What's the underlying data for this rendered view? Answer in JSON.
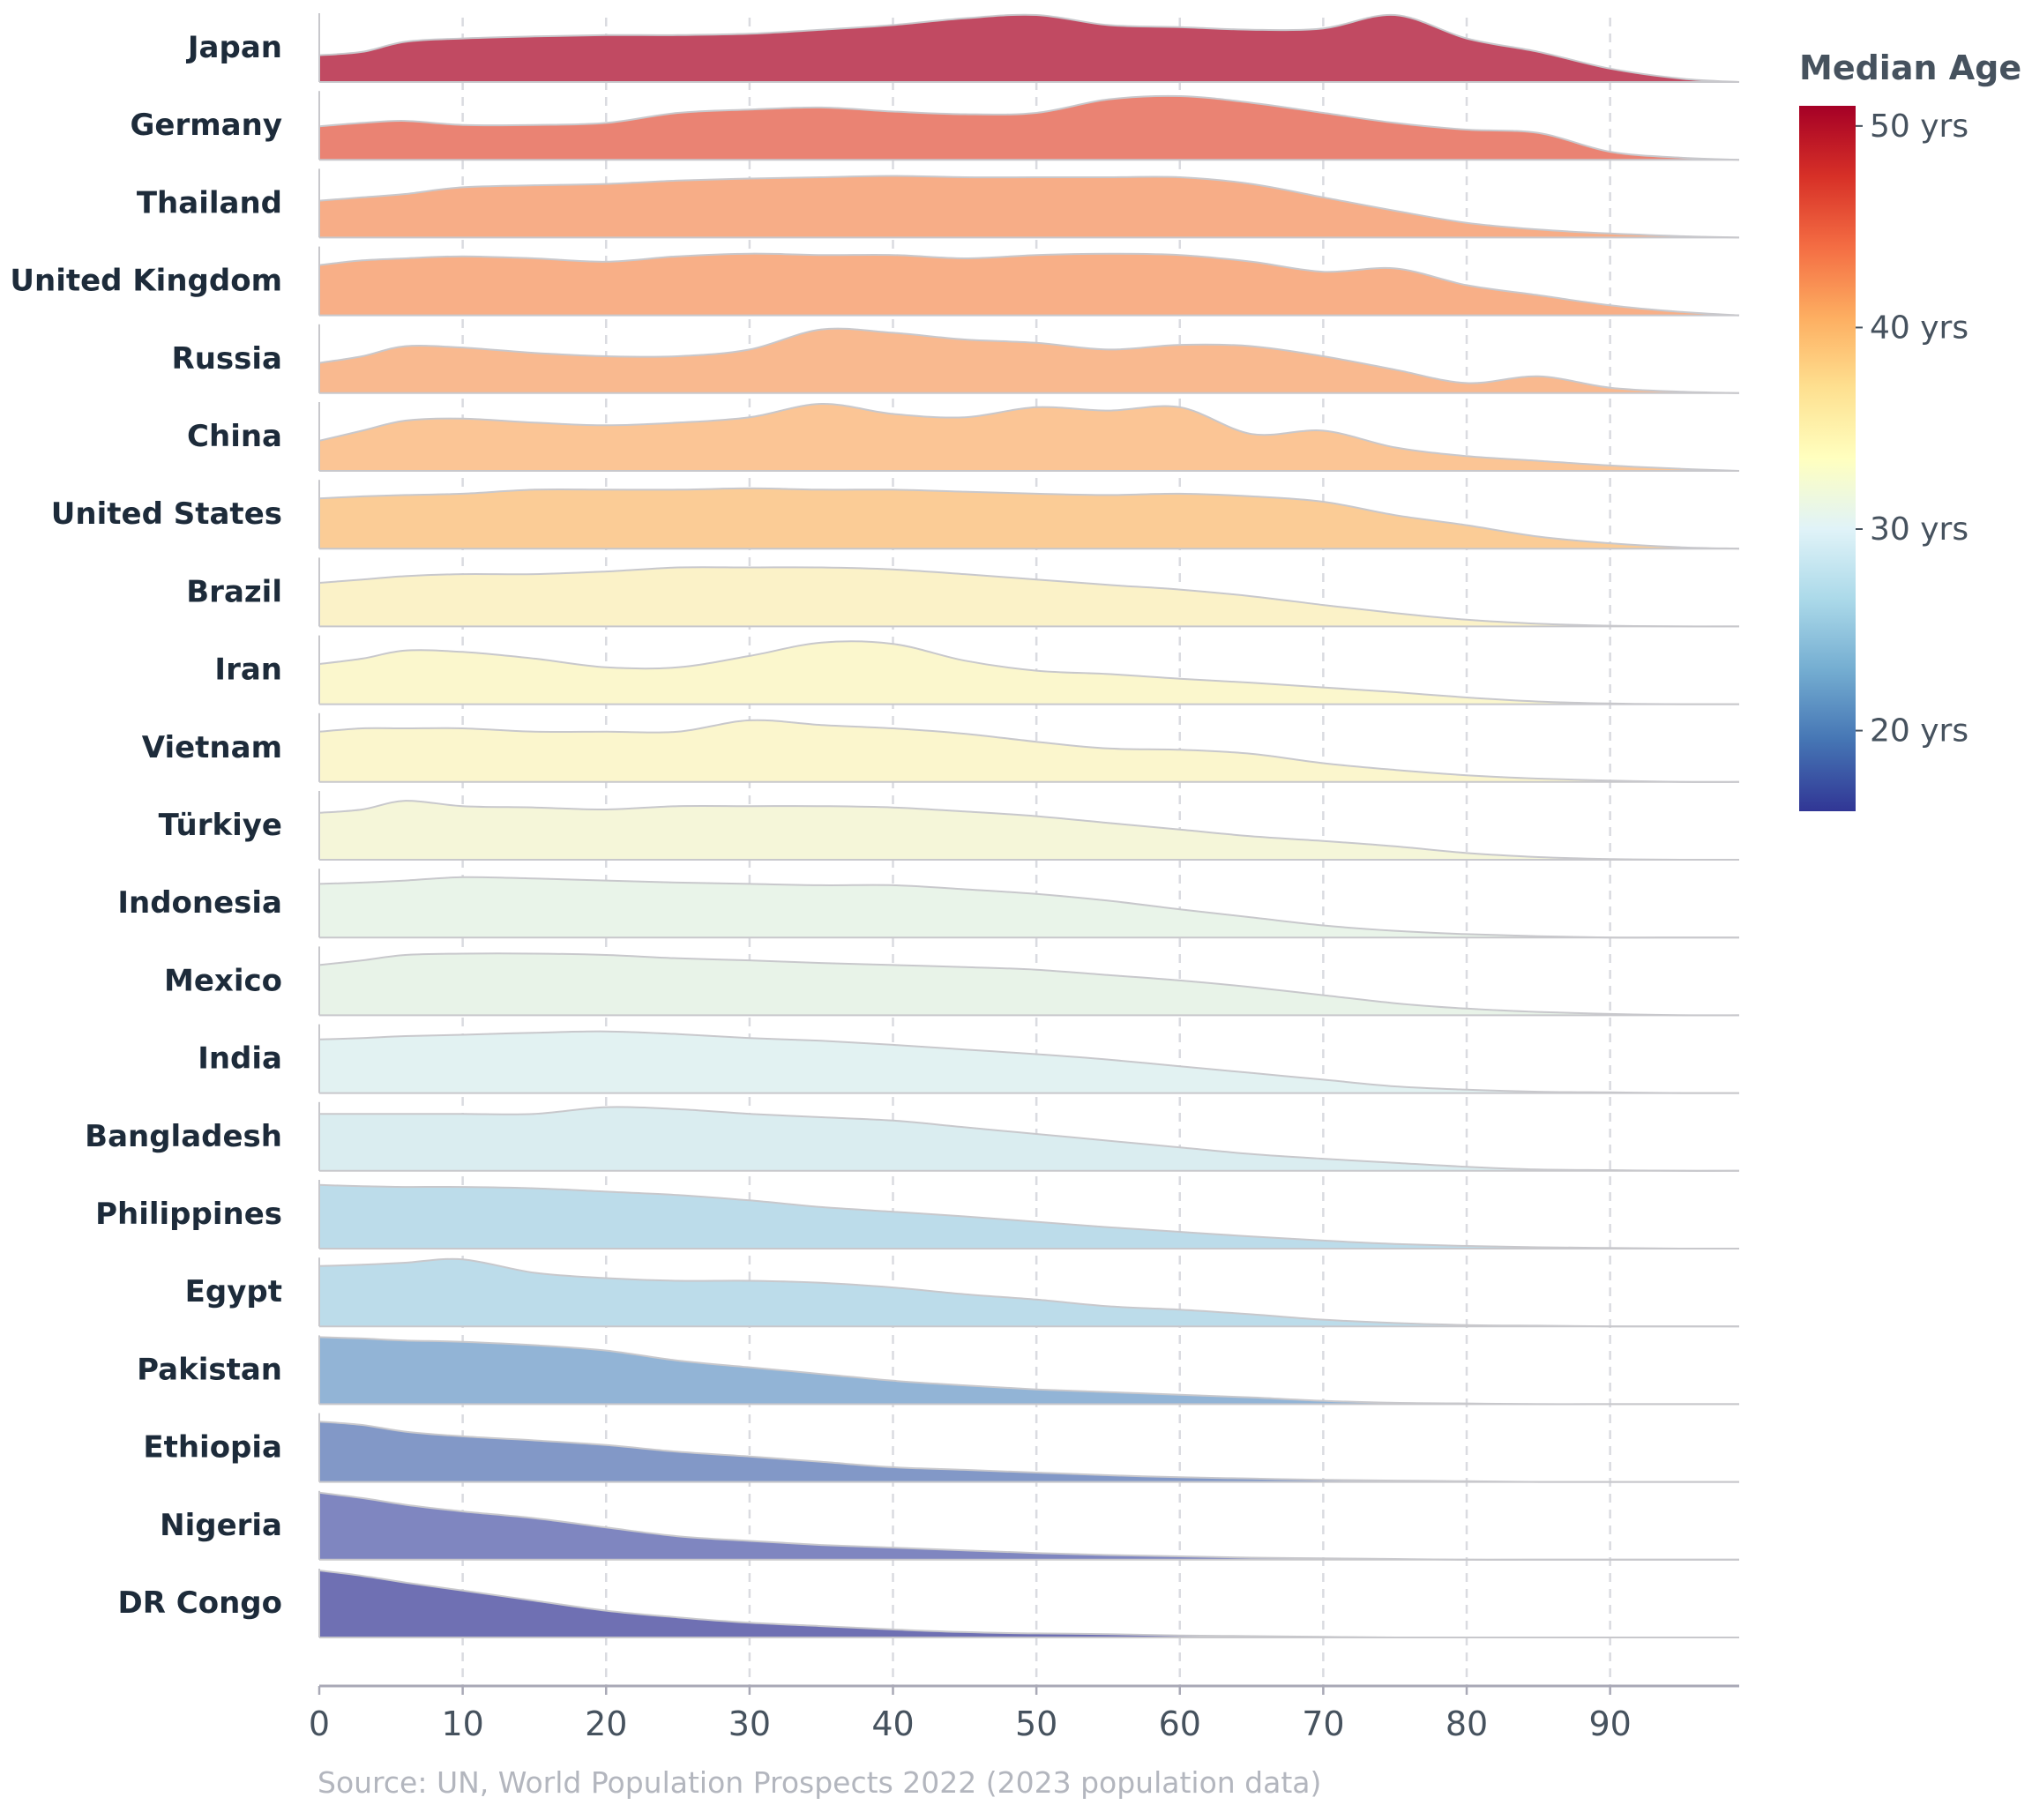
{
  "chart_data": {
    "type": "area",
    "subtype": "ridgeline",
    "x_axis": {
      "min": 0,
      "max": 99,
      "ticks": [
        0,
        10,
        20,
        30,
        40,
        50,
        60,
        70,
        80,
        90
      ],
      "tick_labels": [
        "0",
        "10",
        "20",
        "30",
        "40",
        "50",
        "60",
        "70",
        "80",
        "90"
      ]
    },
    "grid": "vertical dashed",
    "legend": {
      "title": "Median Age",
      "placement": "right",
      "range": [
        16,
        51
      ],
      "ticks": [
        {
          "value": 50,
          "label": "50 yrs"
        },
        {
          "value": 40,
          "label": "40 yrs"
        },
        {
          "value": 30,
          "label": "30 yrs"
        },
        {
          "value": 20,
          "label": "20 yrs"
        }
      ],
      "colors": [
        "#313695",
        "#4575b4",
        "#74add1",
        "#abd9e9",
        "#e0f3f8",
        "#ffffbf",
        "#fee090",
        "#fdae61",
        "#f46d43",
        "#d73027",
        "#a50026"
      ]
    },
    "x_sample": [
      0,
      3,
      6,
      10,
      15,
      20,
      25,
      30,
      35,
      40,
      45,
      50,
      55,
      60,
      65,
      70,
      75,
      80,
      85,
      90,
      95,
      99
    ],
    "series": [
      {
        "name": "Japan",
        "color": "#c14a62",
        "values": [
          0.4,
          0.45,
          0.6,
          0.65,
          0.68,
          0.7,
          0.7,
          0.72,
          0.78,
          0.85,
          0.95,
          1.0,
          0.85,
          0.82,
          0.78,
          0.8,
          1.0,
          0.65,
          0.45,
          0.2,
          0.05,
          0.0
        ]
      }
    ],
    "source": "Source: UN, World Population Prospects 2022 (2023 population data)"
  },
  "countries": [
    {
      "name": "Japan",
      "color": "#c14a62",
      "v": [
        0.4,
        0.45,
        0.6,
        0.65,
        0.68,
        0.7,
        0.7,
        0.72,
        0.78,
        0.85,
        0.95,
        1.0,
        0.85,
        0.82,
        0.78,
        0.8,
        1.0,
        0.65,
        0.45,
        0.2,
        0.05,
        0.0
      ]
    },
    {
      "name": "Germany",
      "color": "#ea8373",
      "v": [
        0.5,
        0.55,
        0.58,
        0.52,
        0.52,
        0.55,
        0.7,
        0.75,
        0.78,
        0.72,
        0.68,
        0.7,
        0.9,
        0.95,
        0.85,
        0.7,
        0.55,
        0.45,
        0.4,
        0.12,
        0.03,
        0.0
      ]
    },
    {
      "name": "Thailand",
      "color": "#f7ad87",
      "v": [
        0.55,
        0.6,
        0.65,
        0.75,
        0.78,
        0.8,
        0.85,
        0.88,
        0.9,
        0.92,
        0.9,
        0.9,
        0.9,
        0.9,
        0.8,
        0.6,
        0.4,
        0.22,
        0.12,
        0.06,
        0.02,
        0.0
      ]
    },
    {
      "name": "United Kingdom",
      "color": "#f8af87",
      "v": [
        0.75,
        0.82,
        0.85,
        0.88,
        0.85,
        0.8,
        0.88,
        0.92,
        0.9,
        0.9,
        0.85,
        0.9,
        0.92,
        0.9,
        0.8,
        0.65,
        0.7,
        0.45,
        0.3,
        0.15,
        0.05,
        0.0
      ]
    },
    {
      "name": "Russia",
      "color": "#f9b98f",
      "v": [
        0.45,
        0.55,
        0.7,
        0.68,
        0.6,
        0.55,
        0.55,
        0.65,
        0.95,
        0.9,
        0.8,
        0.75,
        0.65,
        0.72,
        0.7,
        0.55,
        0.35,
        0.15,
        0.25,
        0.08,
        0.02,
        0.0
      ]
    },
    {
      "name": "China",
      "color": "#fbc595",
      "v": [
        0.45,
        0.6,
        0.75,
        0.78,
        0.72,
        0.68,
        0.72,
        0.8,
        1.0,
        0.85,
        0.8,
        0.95,
        0.9,
        0.95,
        0.55,
        0.6,
        0.35,
        0.22,
        0.15,
        0.08,
        0.03,
        0.0
      ]
    },
    {
      "name": "United States",
      "color": "#fbcc96",
      "v": [
        0.75,
        0.78,
        0.8,
        0.82,
        0.88,
        0.88,
        0.88,
        0.9,
        0.88,
        0.88,
        0.85,
        0.82,
        0.8,
        0.82,
        0.78,
        0.7,
        0.5,
        0.35,
        0.18,
        0.08,
        0.02,
        0.0
      ]
    },
    {
      "name": "Brazil",
      "color": "#fbf2c8",
      "v": [
        0.65,
        0.7,
        0.75,
        0.78,
        0.78,
        0.82,
        0.88,
        0.88,
        0.88,
        0.85,
        0.78,
        0.7,
        0.62,
        0.55,
        0.45,
        0.32,
        0.2,
        0.1,
        0.04,
        0.01,
        0.0,
        0.0
      ]
    },
    {
      "name": "Iran",
      "color": "#fbf7cd",
      "v": [
        0.6,
        0.68,
        0.8,
        0.78,
        0.68,
        0.55,
        0.55,
        0.72,
        0.92,
        0.9,
        0.65,
        0.5,
        0.45,
        0.38,
        0.32,
        0.25,
        0.18,
        0.1,
        0.04,
        0.01,
        0.0,
        0.0
      ]
    },
    {
      "name": "Vietnam",
      "color": "#fbf6cd",
      "v": [
        0.75,
        0.8,
        0.8,
        0.8,
        0.75,
        0.75,
        0.75,
        0.92,
        0.85,
        0.8,
        0.72,
        0.6,
        0.5,
        0.48,
        0.42,
        0.28,
        0.18,
        0.1,
        0.05,
        0.02,
        0.0,
        0.0
      ]
    },
    {
      "name": "Türkiye",
      "color": "#f5f6d9",
      "v": [
        0.7,
        0.75,
        0.88,
        0.8,
        0.78,
        0.75,
        0.8,
        0.8,
        0.8,
        0.78,
        0.72,
        0.65,
        0.55,
        0.45,
        0.35,
        0.28,
        0.2,
        0.1,
        0.04,
        0.01,
        0.0,
        0.0
      ]
    },
    {
      "name": "Indonesia",
      "color": "#e9f4e9",
      "v": [
        0.8,
        0.82,
        0.85,
        0.9,
        0.88,
        0.85,
        0.82,
        0.8,
        0.78,
        0.78,
        0.72,
        0.65,
        0.55,
        0.42,
        0.3,
        0.18,
        0.1,
        0.05,
        0.02,
        0.0,
        0.0,
        0.0
      ]
    },
    {
      "name": "Mexico",
      "color": "#e8f3e8",
      "v": [
        0.75,
        0.82,
        0.9,
        0.92,
        0.92,
        0.9,
        0.85,
        0.82,
        0.78,
        0.75,
        0.72,
        0.68,
        0.6,
        0.52,
        0.42,
        0.3,
        0.18,
        0.1,
        0.05,
        0.02,
        0.0,
        0.0
      ]
    },
    {
      "name": "India",
      "color": "#e2f2f2",
      "v": [
        0.8,
        0.82,
        0.85,
        0.87,
        0.9,
        0.92,
        0.88,
        0.82,
        0.78,
        0.72,
        0.65,
        0.58,
        0.5,
        0.4,
        0.3,
        0.2,
        0.1,
        0.05,
        0.02,
        0.01,
        0.0,
        0.0
      ]
    },
    {
      "name": "Bangladesh",
      "color": "#daedf0",
      "v": [
        0.85,
        0.85,
        0.85,
        0.85,
        0.85,
        0.95,
        0.92,
        0.85,
        0.8,
        0.75,
        0.65,
        0.55,
        0.45,
        0.35,
        0.25,
        0.18,
        0.12,
        0.06,
        0.02,
        0.01,
        0.0,
        0.0
      ]
    },
    {
      "name": "Philippines",
      "color": "#bcdcea",
      "v": [
        0.95,
        0.93,
        0.92,
        0.92,
        0.9,
        0.85,
        0.8,
        0.72,
        0.62,
        0.55,
        0.48,
        0.4,
        0.32,
        0.25,
        0.18,
        0.12,
        0.07,
        0.04,
        0.02,
        0.01,
        0.0,
        0.0
      ]
    },
    {
      "name": "Egypt",
      "color": "#bcdcea",
      "v": [
        0.9,
        0.92,
        0.95,
        1.0,
        0.8,
        0.72,
        0.68,
        0.68,
        0.65,
        0.58,
        0.48,
        0.4,
        0.3,
        0.25,
        0.18,
        0.1,
        0.05,
        0.02,
        0.01,
        0.0,
        0.0,
        0.0
      ]
    },
    {
      "name": "Pakistan",
      "color": "#92b4d6",
      "v": [
        1.0,
        0.98,
        0.95,
        0.93,
        0.88,
        0.8,
        0.65,
        0.55,
        0.45,
        0.35,
        0.28,
        0.22,
        0.18,
        0.14,
        0.1,
        0.05,
        0.02,
        0.01,
        0.0,
        0.0,
        0.0,
        0.0
      ]
    },
    {
      "name": "Ethiopia",
      "color": "#8298c7",
      "v": [
        0.9,
        0.85,
        0.75,
        0.68,
        0.62,
        0.55,
        0.45,
        0.38,
        0.3,
        0.22,
        0.18,
        0.14,
        0.1,
        0.07,
        0.05,
        0.03,
        0.02,
        0.01,
        0.0,
        0.0,
        0.0,
        0.0
      ]
    },
    {
      "name": "Nigeria",
      "color": "#7f86c0",
      "v": [
        1.0,
        0.92,
        0.82,
        0.72,
        0.62,
        0.48,
        0.35,
        0.28,
        0.22,
        0.18,
        0.14,
        0.1,
        0.07,
        0.05,
        0.03,
        0.02,
        0.01,
        0.0,
        0.0,
        0.0,
        0.0,
        0.0
      ]
    },
    {
      "name": "DR Congo",
      "color": "#6f70b3",
      "v": [
        1.0,
        0.92,
        0.82,
        0.7,
        0.55,
        0.4,
        0.3,
        0.22,
        0.17,
        0.12,
        0.08,
        0.06,
        0.05,
        0.03,
        0.02,
        0.01,
        0.0,
        0.0,
        0.0,
        0.0,
        0.0,
        0.0
      ]
    }
  ]
}
